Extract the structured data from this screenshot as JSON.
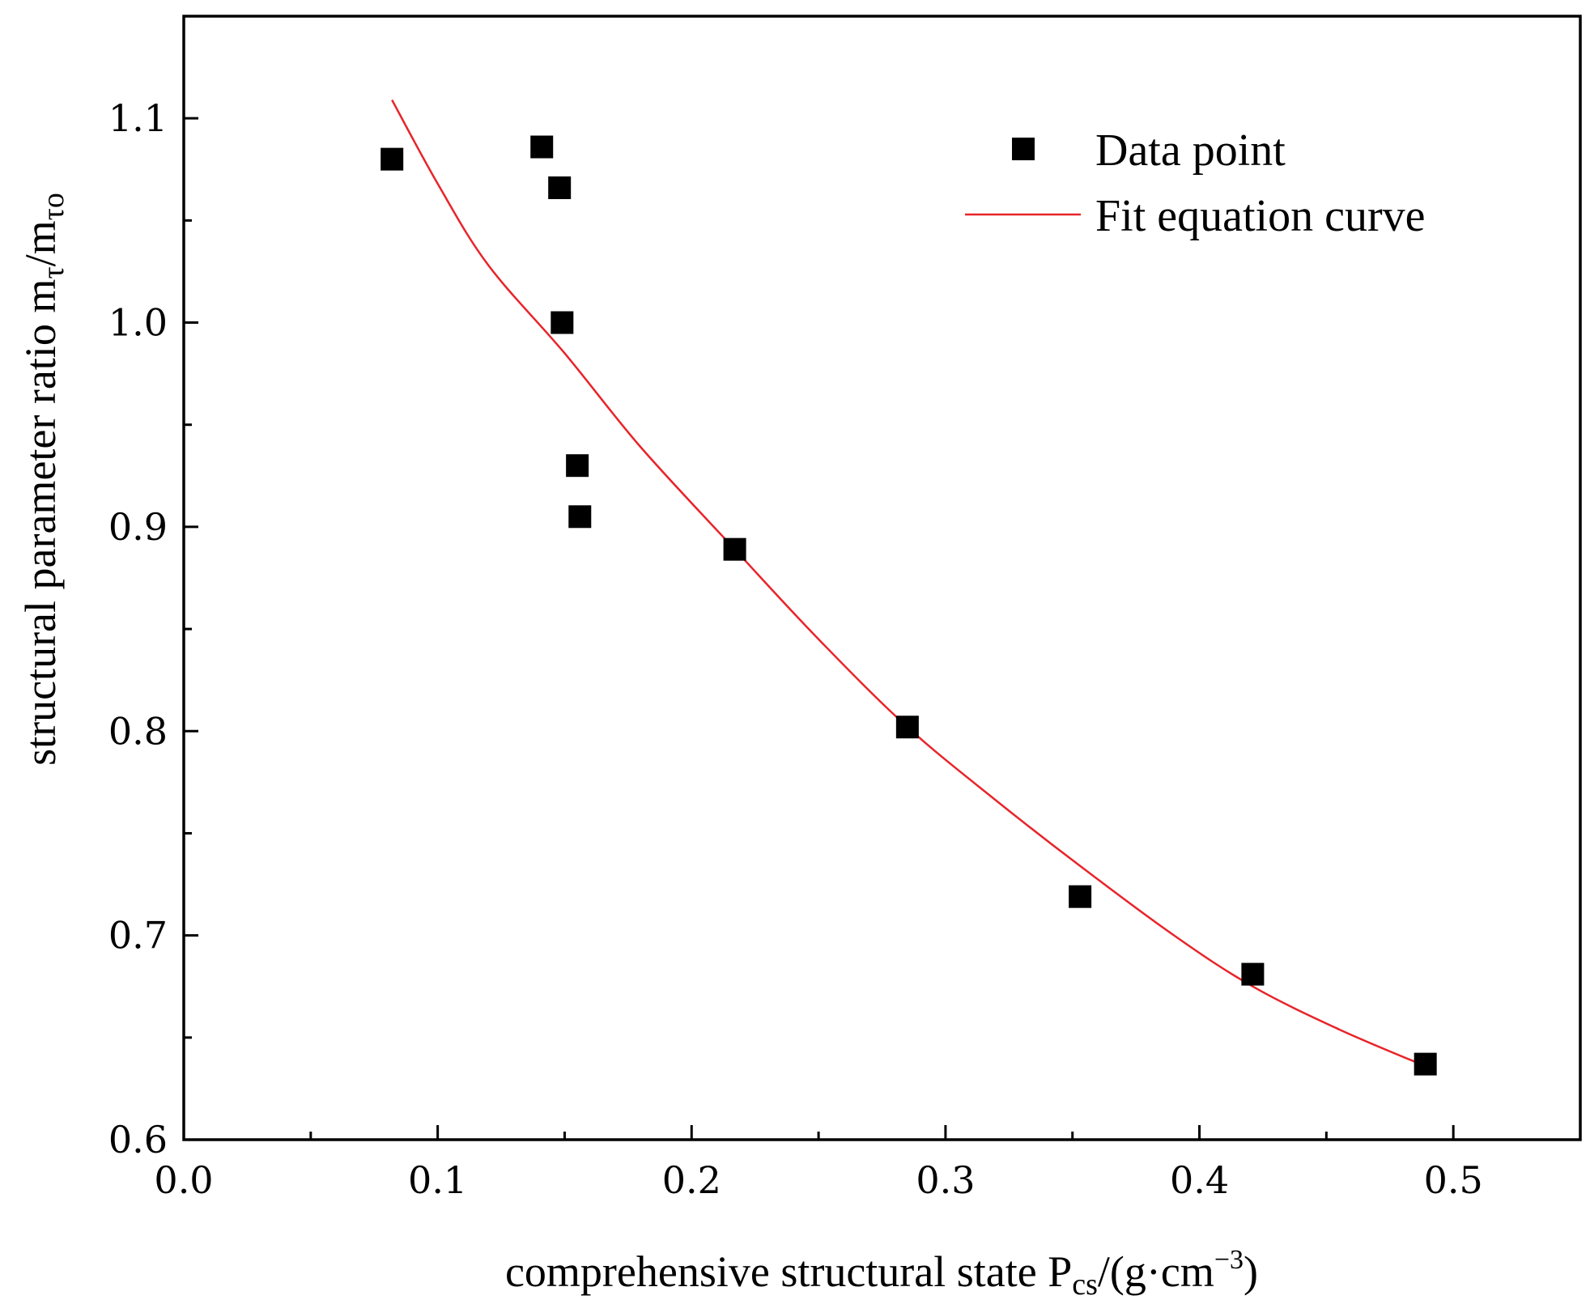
{
  "chart_data": {
    "type": "scatter",
    "title": "",
    "xlabel": {
      "main": "comprehensive structural state P",
      "sub": "cs",
      "unit_open": "/(g·cm",
      "sup": "−3",
      "unit_close": ")"
    },
    "ylabel": {
      "main": "structural parameter ratio  m",
      "sub1": "τ",
      "slash": "/m",
      "sub2": "τo"
    },
    "xlim": [
      0.0,
      0.55
    ],
    "ylim": [
      0.6,
      1.15
    ],
    "x_ticks": [
      0.0,
      0.1,
      0.2,
      0.3,
      0.4,
      0.5
    ],
    "x_tick_labels": [
      "0.0",
      "0.1",
      "0.2",
      "0.3",
      "0.4",
      "0.5"
    ],
    "x_minor_ticks": [
      0.05,
      0.15,
      0.25,
      0.35,
      0.45,
      0.55
    ],
    "y_ticks": [
      0.6,
      0.7,
      0.8,
      0.9,
      1.0,
      1.1
    ],
    "y_tick_labels": [
      "0.6",
      "0.7",
      "0.8",
      "0.9",
      "1.0",
      "1.1"
    ],
    "y_minor_ticks": [
      0.65,
      0.75,
      0.85,
      0.95,
      1.05
    ],
    "grid": false,
    "legend_position": "top-right",
    "series": [
      {
        "name": "Data point",
        "kind": "scatter",
        "marker": "square",
        "color": "#000000",
        "points": [
          {
            "x": 0.082,
            "y": 1.08
          },
          {
            "x": 0.141,
            "y": 1.086
          },
          {
            "x": 0.148,
            "y": 1.066
          },
          {
            "x": 0.149,
            "y": 1.0
          },
          {
            "x": 0.155,
            "y": 0.93
          },
          {
            "x": 0.156,
            "y": 0.905
          },
          {
            "x": 0.217,
            "y": 0.889
          },
          {
            "x": 0.285,
            "y": 0.802
          },
          {
            "x": 0.353,
            "y": 0.719
          },
          {
            "x": 0.421,
            "y": 0.681
          },
          {
            "x": 0.489,
            "y": 0.637
          }
        ]
      },
      {
        "name": "Fit equation curve",
        "kind": "line",
        "color": "#e8242a",
        "points": [
          {
            "x": 0.082,
            "y": 1.109
          },
          {
            "x": 0.1,
            "y": 1.068
          },
          {
            "x": 0.12,
            "y": 1.028
          },
          {
            "x": 0.15,
            "y": 0.985
          },
          {
            "x": 0.18,
            "y": 0.939
          },
          {
            "x": 0.217,
            "y": 0.889
          },
          {
            "x": 0.25,
            "y": 0.845
          },
          {
            "x": 0.285,
            "y": 0.802
          },
          {
            "x": 0.32,
            "y": 0.766
          },
          {
            "x": 0.353,
            "y": 0.734
          },
          {
            "x": 0.39,
            "y": 0.7
          },
          {
            "x": 0.421,
            "y": 0.675
          },
          {
            "x": 0.455,
            "y": 0.654
          },
          {
            "x": 0.489,
            "y": 0.636
          }
        ]
      }
    ]
  }
}
